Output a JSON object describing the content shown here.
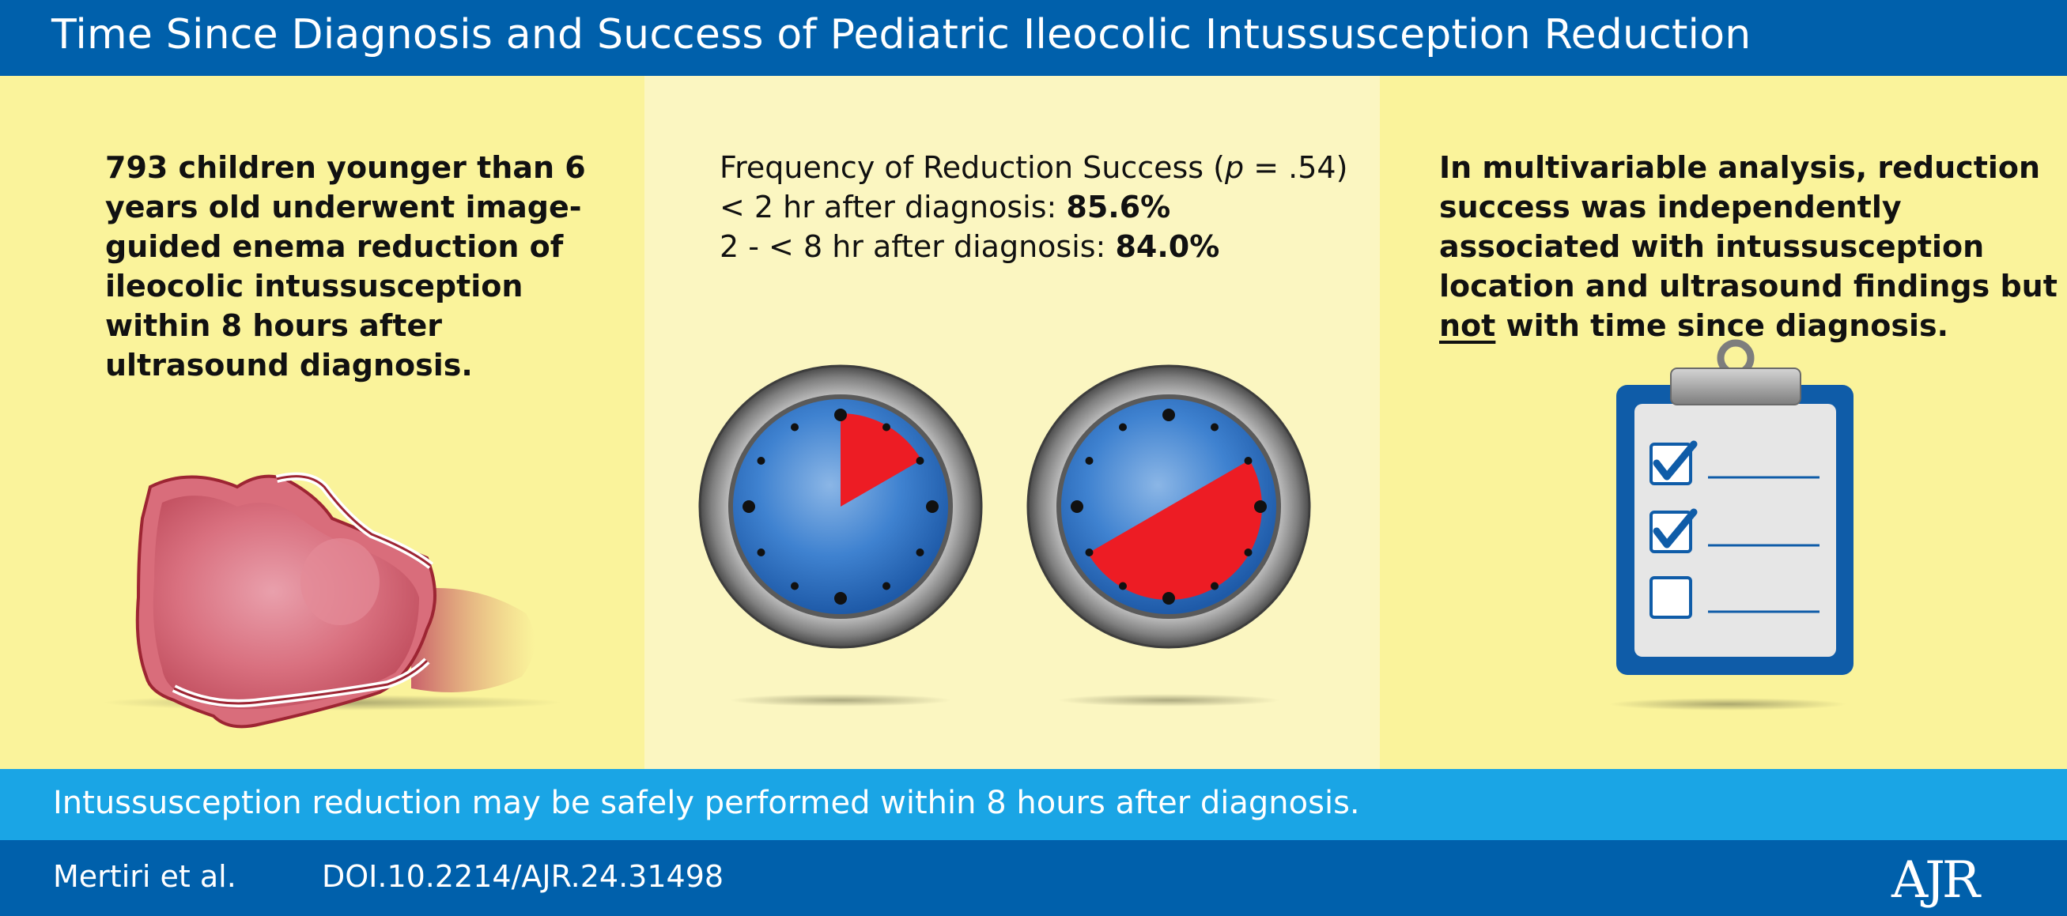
{
  "header": {
    "title": "Time Since Diagnosis and Success of Pediatric Ileocolic Intussusception Reduction"
  },
  "left_panel": {
    "count": "793",
    "text": " children younger than 6 years old underwent image-guided enema reduction of ileocolic intussusception within 8 hours after ultrasound diagnosis.",
    "image": "intussusception-bowel-illustration"
  },
  "middle_panel": {
    "heading": "Frequency of Reduction Success (",
    "p_letter": "p",
    "p_value": " = .54)",
    "row1_label": "< 2 hr after diagnosis: ",
    "row1_value": "85.6%",
    "row2_label": "2 - < 8 hr after diagnosis: ",
    "row2_value": "84.0%",
    "clock1_hours": 2,
    "clock2_hours": 8,
    "clock_face_color": "#2f73c4",
    "clock_fill_color": "#ed1c24"
  },
  "right_panel": {
    "text_before": "In multivariable analysis, reduction success was independently associated with intussusception location and ultrasound findings but ",
    "emphasis": "not",
    "text_after": " with time since diagnosis.",
    "checklist": [
      {
        "checked": true
      },
      {
        "checked": true
      },
      {
        "checked": false
      }
    ]
  },
  "conclusion": {
    "text": "Intussusception reduction may be safely performed within 8 hours after diagnosis."
  },
  "footer": {
    "authors": "Mertiri et al.",
    "doi": "DOI.10.2214/AJR.24.31498",
    "logo": "AJR"
  },
  "colors": {
    "header": "#0060ab",
    "conclusion_bar": "#1aa5e5",
    "panel_yellow": "#faf39b",
    "panel_cream": "#fbf6c1"
  }
}
